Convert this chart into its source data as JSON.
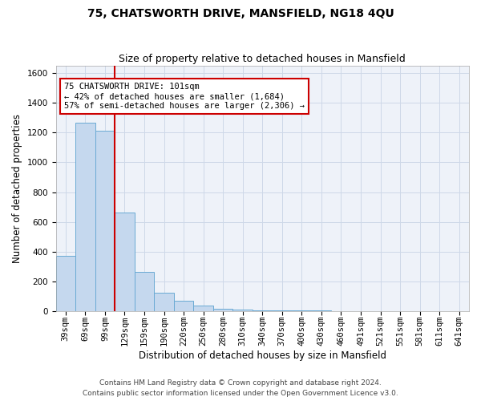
{
  "title": "75, CHATSWORTH DRIVE, MANSFIELD, NG18 4QU",
  "subtitle": "Size of property relative to detached houses in Mansfield",
  "xlabel": "Distribution of detached houses by size in Mansfield",
  "ylabel": "Number of detached properties",
  "footer_line1": "Contains HM Land Registry data © Crown copyright and database right 2024.",
  "footer_line2": "Contains public sector information licensed under the Open Government Licence v3.0.",
  "annotation_line1": "75 CHATSWORTH DRIVE: 101sqm",
  "annotation_line2": "← 42% of detached houses are smaller (1,684)",
  "annotation_line3": "57% of semi-detached houses are larger (2,306) →",
  "bar_color": "#c5d8ee",
  "bar_edge_color": "#6aaad4",
  "vline_color": "#cc0000",
  "annotation_box_color": "#cc0000",
  "grid_color": "#cdd8e8",
  "bg_color": "#eef2f9",
  "categories": [
    "39sqm",
    "69sqm",
    "99sqm",
    "129sqm",
    "159sqm",
    "190sqm",
    "220sqm",
    "250sqm",
    "280sqm",
    "310sqm",
    "340sqm",
    "370sqm",
    "400sqm",
    "430sqm",
    "460sqm",
    "491sqm",
    "521sqm",
    "551sqm",
    "581sqm",
    "611sqm",
    "641sqm"
  ],
  "values": [
    370,
    1265,
    1215,
    660,
    265,
    120,
    70,
    35,
    15,
    10,
    5,
    5,
    3,
    2,
    1,
    1,
    0,
    0,
    0,
    0,
    0
  ],
  "ylim": [
    0,
    1650
  ],
  "yticks": [
    0,
    200,
    400,
    600,
    800,
    1000,
    1200,
    1400,
    1600
  ],
  "vline_x": 2.5,
  "title_fontsize": 10,
  "subtitle_fontsize": 9,
  "axis_label_fontsize": 8.5,
  "tick_fontsize": 7.5,
  "annotation_fontsize": 7.5,
  "footer_fontsize": 6.5
}
